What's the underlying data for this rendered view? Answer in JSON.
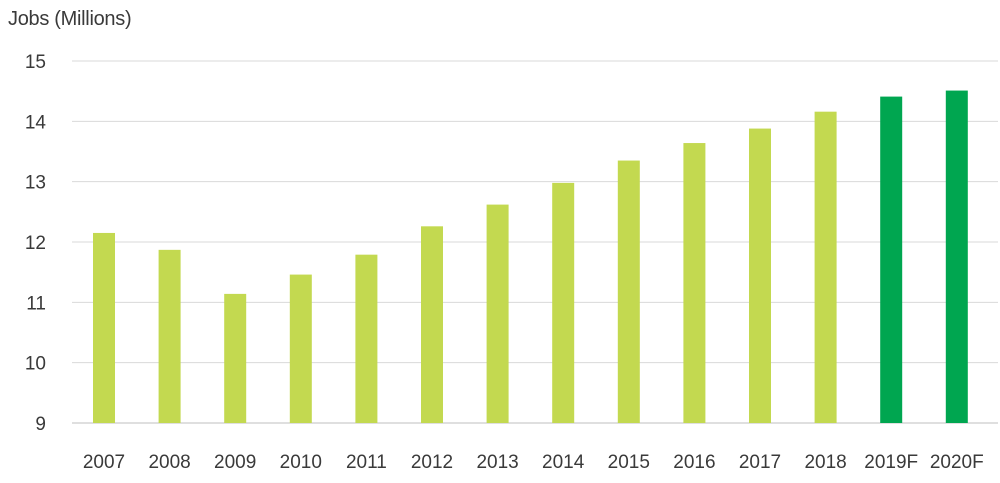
{
  "chart_data": {
    "type": "bar",
    "title": "",
    "ylabel": "Jobs (Millions)",
    "xlabel": "",
    "ylim": [
      9,
      15
    ],
    "yticks": [
      9,
      10,
      11,
      12,
      13,
      14,
      15
    ],
    "grid": true,
    "categories": [
      "2007",
      "2008",
      "2009",
      "2010",
      "2011",
      "2012",
      "2013",
      "2014",
      "2015",
      "2016",
      "2017",
      "2018",
      "2019F",
      "2020F"
    ],
    "values": [
      12.15,
      11.87,
      11.14,
      11.46,
      11.79,
      12.26,
      12.62,
      12.98,
      13.35,
      13.64,
      13.88,
      14.16,
      14.41,
      14.51
    ],
    "forecast": [
      false,
      false,
      false,
      false,
      false,
      false,
      false,
      false,
      false,
      false,
      false,
      false,
      true,
      true
    ],
    "colors": {
      "actual": "#c3d950",
      "forecast": "#00a650"
    }
  }
}
